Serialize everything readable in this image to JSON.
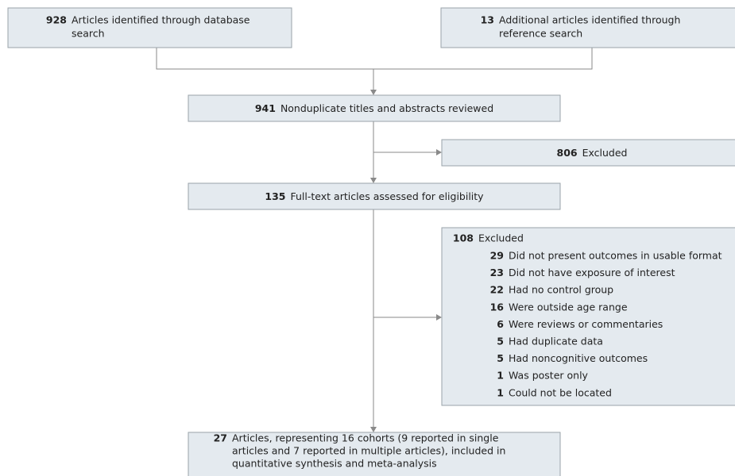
{
  "boxes": {
    "database": {
      "count": 928,
      "lines": [
        "Articles identified through database",
        "search"
      ]
    },
    "reference": {
      "count": 13,
      "lines": [
        "Additional articles identified through",
        "reference search"
      ]
    },
    "nonduplicate": {
      "count": 941,
      "text": "Nonduplicate titles and abstracts reviewed"
    },
    "excluded_screen": {
      "count": 806,
      "text": "Excluded"
    },
    "fulltext": {
      "count": 135,
      "text": "Full-text articles assessed for eligibility"
    },
    "excluded_fulltext": {
      "count": 108,
      "text": "Excluded",
      "reasons": [
        {
          "count": 29,
          "text": "Did not present outcomes in usable format"
        },
        {
          "count": 23,
          "text": "Did not have exposure of interest"
        },
        {
          "count": 22,
          "text": "Had no control group"
        },
        {
          "count": 16,
          "text": "Were outside age range"
        },
        {
          "count": 6,
          "text": "Were reviews or commentaries"
        },
        {
          "count": 5,
          "text": "Had duplicate data"
        },
        {
          "count": 5,
          "text": "Had noncognitive outcomes"
        },
        {
          "count": 1,
          "text": "Was poster only"
        },
        {
          "count": 1,
          "text": "Could not be located"
        }
      ]
    },
    "included": {
      "count": 27,
      "lines": [
        "Articles, representing 16 cohorts (9 reported in single",
        "articles and 7 reported in multiple articles), included in",
        "quantitative synthesis and meta-analysis"
      ]
    }
  }
}
